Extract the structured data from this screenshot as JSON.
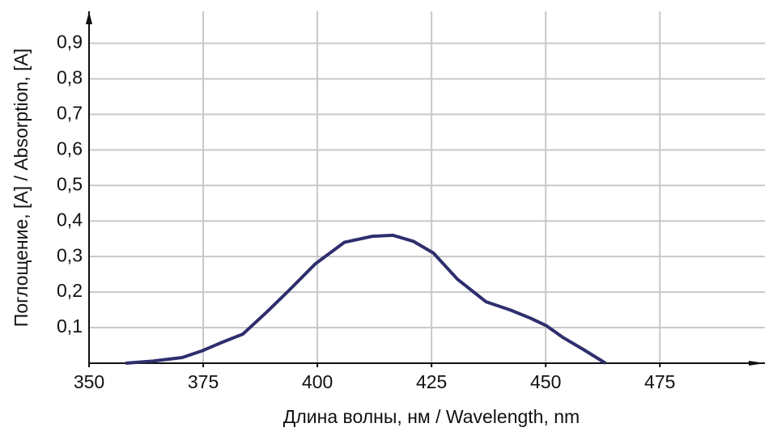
{
  "chart_data": {
    "type": "line",
    "xlabel": "Длина волны, нм / Wavelength, nm",
    "ylabel": "Поглощение, [A] / Absorption, [A]",
    "x": [
      358,
      364,
      370.4,
      374.8,
      379,
      383.7,
      389,
      393.4,
      399.6,
      405.9,
      412,
      416.5,
      421,
      425.4,
      430.7,
      436.9,
      442.2,
      446.6,
      450.2,
      453.7,
      458.2,
      463.1
    ],
    "series": [
      {
        "color": "#2e2e6e",
        "values": [
          0,
          0.006,
          0.016,
          0.035,
          0.058,
          0.082,
          0.145,
          0.2,
          0.28,
          0.34,
          0.357,
          0.36,
          0.343,
          0.31,
          0.236,
          0.173,
          0.15,
          0.127,
          0.105,
          0.073,
          0.039,
          0
        ]
      }
    ],
    "xlim": [
      350,
      498
    ],
    "ylim": [
      0,
      0.99
    ],
    "xticks": [
      350,
      375,
      400,
      425,
      450,
      475
    ],
    "yticks": [
      {
        "value": 0.1,
        "label": "0,1"
      },
      {
        "value": 0.2,
        "label": "0,2"
      },
      {
        "value": 0.3,
        "label": "0,3"
      },
      {
        "value": 0.4,
        "label": "0,4"
      },
      {
        "value": 0.5,
        "label": "0,5"
      },
      {
        "value": 0.6,
        "label": "0,6"
      },
      {
        "value": 0.7,
        "label": "0,7"
      },
      {
        "value": 0.8,
        "label": "0,8"
      },
      {
        "value": 0.9,
        "label": "0,9"
      }
    ],
    "grid": true
  }
}
